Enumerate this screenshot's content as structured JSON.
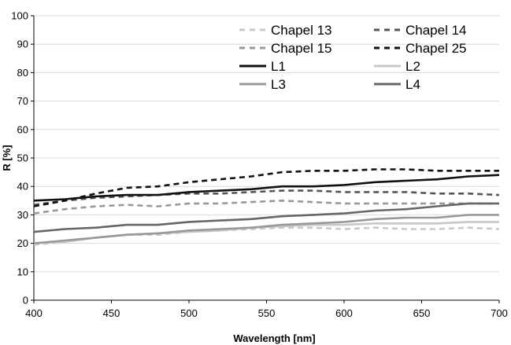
{
  "chart_data": {
    "type": "line",
    "title": "",
    "xlabel": "Wavelength  [nm]",
    "ylabel": "R [%]",
    "xlim": [
      400,
      700
    ],
    "ylim": [
      0,
      100
    ],
    "x_ticks": [
      "400",
      "450",
      "500",
      "550",
      "600",
      "650",
      "700"
    ],
    "y_ticks": [
      "0",
      "10",
      "20",
      "30",
      "40",
      "50",
      "60",
      "70",
      "80",
      "90",
      "100"
    ],
    "grid": "horizontal",
    "legend_position": "top-right",
    "x": [
      400,
      420,
      440,
      460,
      480,
      500,
      520,
      540,
      560,
      580,
      600,
      620,
      640,
      660,
      680,
      700
    ],
    "series": [
      {
        "name": "Chapel 13",
        "color": "#c8c8c8",
        "dash": "dash",
        "values": [
          19.5,
          20.5,
          22.0,
          23.0,
          23.0,
          24.0,
          24.5,
          25.0,
          25.5,
          25.5,
          25.0,
          25.5,
          25.0,
          25.0,
          25.5,
          25.0
        ]
      },
      {
        "name": "Chapel 14",
        "color": "#555555",
        "dash": "dash",
        "values": [
          33.5,
          35.0,
          36.0,
          36.5,
          37.0,
          37.5,
          37.5,
          38.0,
          38.5,
          38.5,
          38.0,
          38.0,
          38.0,
          37.5,
          37.5,
          37.0
        ]
      },
      {
        "name": "Chapel 15",
        "color": "#999999",
        "dash": "dash",
        "values": [
          30.5,
          32.0,
          33.0,
          33.5,
          33.0,
          34.0,
          34.0,
          34.5,
          35.0,
          34.5,
          34.0,
          34.0,
          34.0,
          34.0,
          34.0,
          34.0
        ]
      },
      {
        "name": "Chapel 25",
        "color": "#111111",
        "dash": "dash",
        "values": [
          33.0,
          35.0,
          37.5,
          39.5,
          40.0,
          41.5,
          42.5,
          43.5,
          45.0,
          45.5,
          45.5,
          46.0,
          46.0,
          45.5,
          45.5,
          45.5
        ]
      },
      {
        "name": "L1",
        "color": "#111111",
        "dash": "solid",
        "values": [
          35.0,
          35.5,
          36.5,
          37.0,
          37.0,
          38.0,
          38.5,
          39.0,
          40.0,
          40.0,
          40.5,
          41.5,
          42.0,
          42.5,
          43.5,
          44.0
        ]
      },
      {
        "name": "L2",
        "color": "#c8c8c8",
        "dash": "solid",
        "values": [
          20.0,
          20.5,
          22.0,
          23.0,
          23.5,
          24.0,
          24.5,
          25.5,
          26.0,
          26.5,
          26.5,
          27.0,
          27.0,
          27.0,
          27.5,
          27.5
        ]
      },
      {
        "name": "L3",
        "color": "#999999",
        "dash": "solid",
        "values": [
          20.0,
          21.0,
          22.0,
          23.0,
          23.5,
          24.5,
          25.0,
          25.5,
          26.5,
          27.0,
          27.5,
          28.5,
          29.0,
          29.0,
          30.0,
          30.0
        ]
      },
      {
        "name": "L4",
        "color": "#666666",
        "dash": "solid",
        "values": [
          24.0,
          25.0,
          25.5,
          26.5,
          26.5,
          27.5,
          28.0,
          28.5,
          29.5,
          30.0,
          30.5,
          31.5,
          32.0,
          33.0,
          34.0,
          34.0
        ]
      }
    ]
  }
}
